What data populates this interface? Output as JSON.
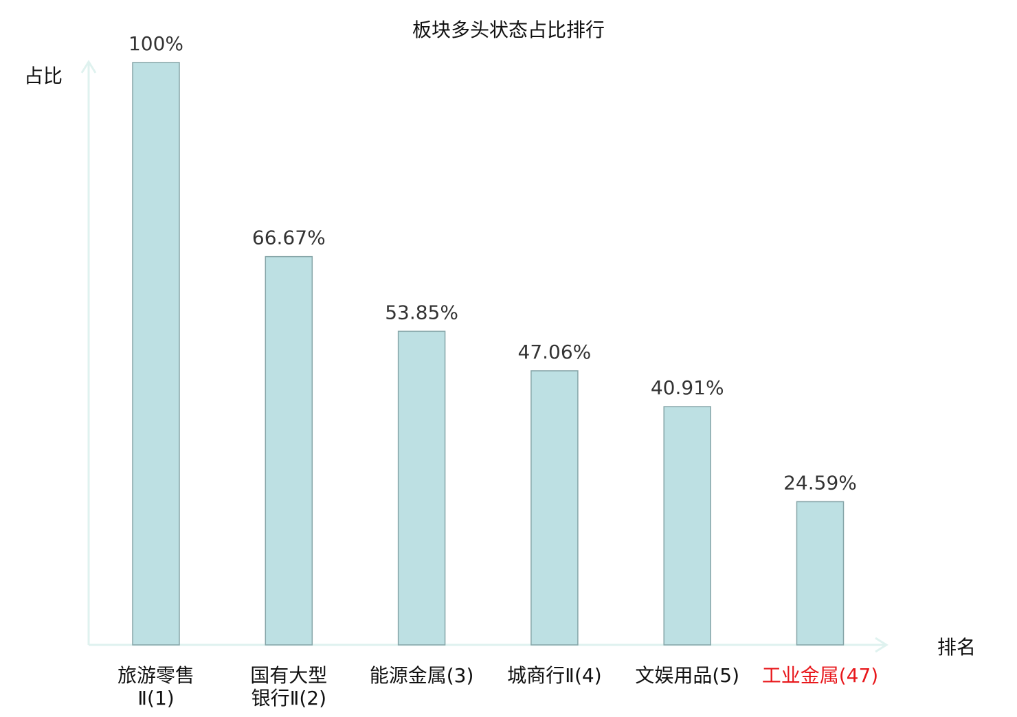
{
  "chart_data": {
    "type": "bar",
    "title": "板块多头状态占比排行",
    "xlabel": "排名",
    "ylabel": "占比",
    "ylim": [
      0,
      100
    ],
    "grid": false,
    "categories": [
      {
        "lines": [
          "旅游零售",
          "Ⅱ(1)"
        ],
        "highlight": false
      },
      {
        "lines": [
          "国有大型",
          "银行Ⅱ(2)"
        ],
        "highlight": false
      },
      {
        "lines": [
          "能源金属(3)"
        ],
        "highlight": false
      },
      {
        "lines": [
          "城商行Ⅱ(4)"
        ],
        "highlight": false
      },
      {
        "lines": [
          "文娱用品(5)"
        ],
        "highlight": false
      },
      {
        "lines": [
          "工业金属(47)"
        ],
        "highlight": true
      }
    ],
    "values": [
      100,
      66.67,
      53.85,
      47.06,
      40.91,
      24.59
    ],
    "value_labels": [
      "100%",
      "66.67%",
      "53.85%",
      "47.06%",
      "40.91%",
      "24.59%"
    ],
    "colors": {
      "bar": "#bde0e3",
      "bar_edge": "#86a5a8",
      "axis": "#dff2ef",
      "text": "#333333",
      "highlight": "#e8181c"
    }
  }
}
